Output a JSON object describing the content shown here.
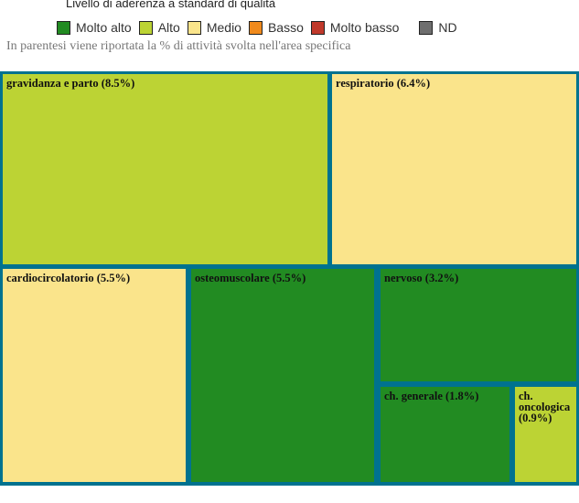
{
  "chart_data": {
    "type": "treemap",
    "title": "Livello di aderenza a standard di qualità",
    "subtitle": "In parentesi viene riportata la % di attività svolta nell'area specifica",
    "legend": [
      {
        "label": "Molto alto",
        "color": "#228b22"
      },
      {
        "label": "Alto",
        "color": "#bcd334"
      },
      {
        "label": "Medio",
        "color": "#fae48b"
      },
      {
        "label": "Basso",
        "color": "#f08a1c"
      },
      {
        "label": "Molto basso",
        "color": "#c0392b"
      },
      {
        "label": "ND",
        "color": "#6e6e6e"
      }
    ],
    "items": [
      {
        "label": "gravidanza e parto (8.5%)",
        "value": 8.5,
        "level": "Alto"
      },
      {
        "label": "respiratorio (6.4%)",
        "value": 6.4,
        "level": "Medio"
      },
      {
        "label": "cardiocircolatorio (5.5%)",
        "value": 5.5,
        "level": "Medio"
      },
      {
        "label": "osteomuscolare (5.5%)",
        "value": 5.5,
        "level": "Molto alto"
      },
      {
        "label": "nervoso (3.2%)",
        "value": 3.2,
        "level": "Molto alto"
      },
      {
        "label": "ch. generale (1.8%)",
        "value": 1.8,
        "level": "Molto alto"
      },
      {
        "label": "ch. oncologica (0.9%)",
        "value": 0.9,
        "level": "Alto"
      }
    ],
    "border_color": "#00728f"
  }
}
